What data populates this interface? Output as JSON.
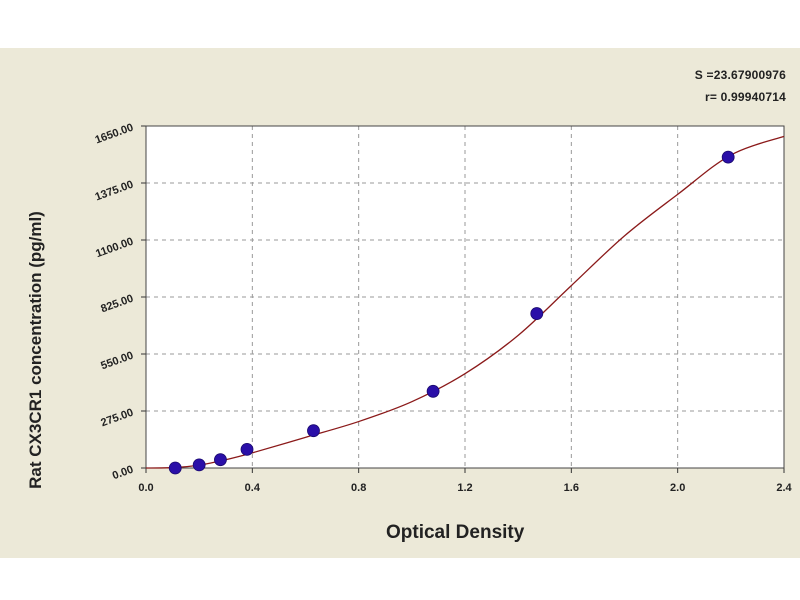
{
  "chart_data": {
    "type": "scatter",
    "xlabel": "Optical Density",
    "ylabel": "Rat CX3CR1 concentration (pg/ml)",
    "xlim": [
      0.0,
      2.4
    ],
    "ylim": [
      0.0,
      1650.0
    ],
    "x_ticks": [
      "0.0",
      "0.4",
      "0.8",
      "1.2",
      "1.6",
      "2.0",
      "2.4"
    ],
    "y_ticks": [
      "0.00",
      "275.00",
      "550.00",
      "825.00",
      "1100.00",
      "1375.00",
      "1650.00"
    ],
    "grid": true,
    "series": [
      {
        "points": [
          {
            "x": 0.11,
            "y": 0
          },
          {
            "x": 0.2,
            "y": 15
          },
          {
            "x": 0.28,
            "y": 40
          },
          {
            "x": 0.38,
            "y": 90
          },
          {
            "x": 0.63,
            "y": 180
          },
          {
            "x": 1.08,
            "y": 370
          },
          {
            "x": 1.47,
            "y": 745
          },
          {
            "x": 2.19,
            "y": 1500
          }
        ],
        "color": "#2a0fa8"
      }
    ],
    "fit_curve": {
      "color": "#8b1a1a",
      "points": [
        {
          "x": 0.0,
          "y": 0
        },
        {
          "x": 0.1,
          "y": 2
        },
        {
          "x": 0.2,
          "y": 14
        },
        {
          "x": 0.3,
          "y": 40
        },
        {
          "x": 0.4,
          "y": 73
        },
        {
          "x": 0.6,
          "y": 148
        },
        {
          "x": 0.8,
          "y": 224
        },
        {
          "x": 1.0,
          "y": 320
        },
        {
          "x": 1.2,
          "y": 455
        },
        {
          "x": 1.4,
          "y": 640
        },
        {
          "x": 1.6,
          "y": 880
        },
        {
          "x": 1.8,
          "y": 1120
        },
        {
          "x": 2.0,
          "y": 1320
        },
        {
          "x": 2.2,
          "y": 1510
        },
        {
          "x": 2.4,
          "y": 1600
        }
      ]
    },
    "stats": {
      "s": "S =23.67900976",
      "r": "r= 0.99940714"
    }
  }
}
